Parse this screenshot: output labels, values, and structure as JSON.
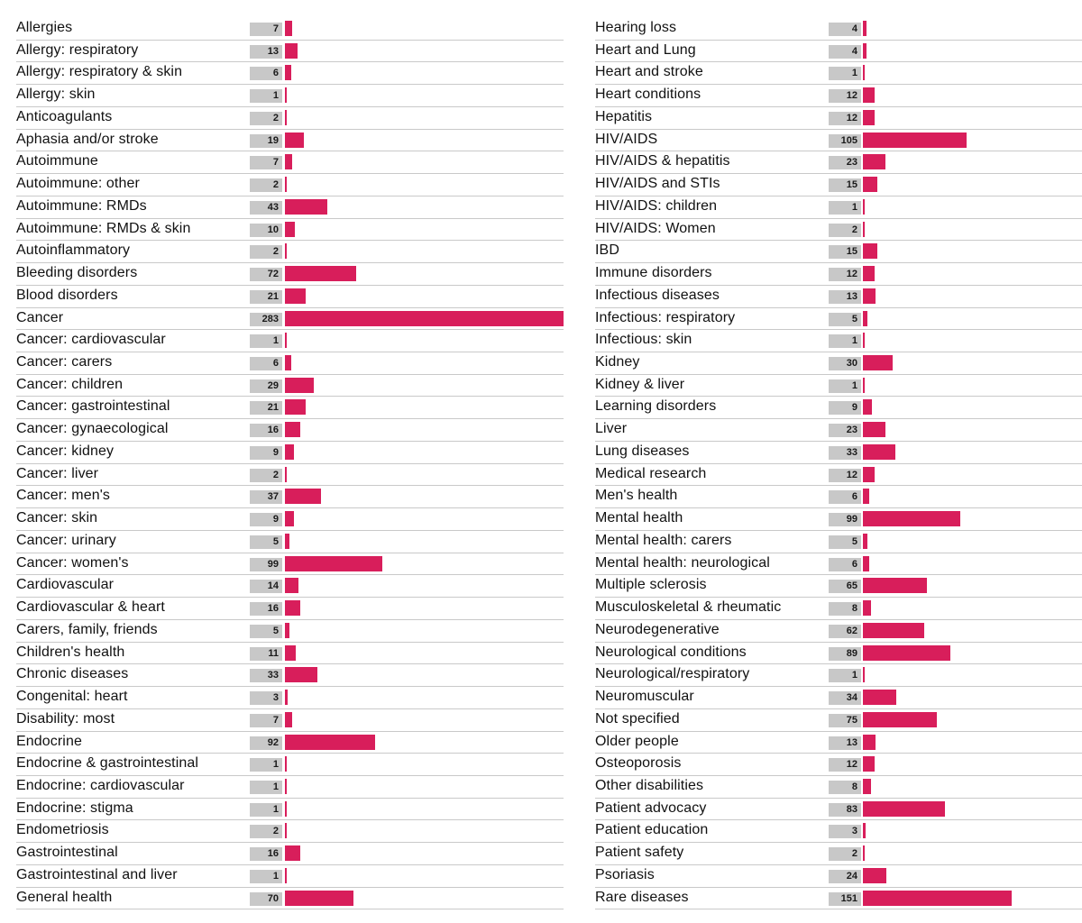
{
  "chart_data": [
    {
      "type": "bar",
      "orientation": "horizontal",
      "bar_color": "#d81e5b",
      "value_badge_color": "#c8c8c8",
      "categories": [
        "Allergies",
        "Allergy: respiratory",
        "Allergy: respiratory & skin",
        "Allergy: skin",
        "Anticoagulants",
        "Aphasia and/or stroke",
        "Autoimmune",
        "Autoimmune: other",
        "Autoimmune: RMDs",
        "Autoimmune: RMDs & skin",
        "Autoinflammatory",
        "Bleeding disorders",
        "Blood disorders",
        "Cancer",
        "Cancer: cardiovascular",
        "Cancer: carers",
        "Cancer: children",
        "Cancer: gastrointestinal",
        "Cancer: gynaecological",
        "Cancer: kidney",
        "Cancer: liver",
        "Cancer: men's",
        "Cancer: skin",
        "Cancer: urinary",
        "Cancer: women's",
        "Cardiovascular",
        "Cardiovascular & heart",
        "Carers, family, friends",
        "Children's health",
        "Chronic diseases",
        "Congenital: heart",
        "Disability: most",
        "Endocrine",
        "Endocrine & gastrointestinal",
        "Endocrine: cardiovascular",
        "Endocrine: stigma",
        "Endometriosis",
        "Gastrointestinal",
        "Gastrointestinal and liver",
        "General health"
      ],
      "values": [
        7,
        13,
        6,
        1,
        2,
        19,
        7,
        2,
        43,
        10,
        2,
        72,
        21,
        283,
        1,
        6,
        29,
        21,
        16,
        9,
        2,
        37,
        9,
        5,
        99,
        14,
        16,
        5,
        11,
        33,
        3,
        7,
        92,
        1,
        1,
        1,
        2,
        16,
        1,
        70
      ],
      "xlim": [
        0,
        283
      ]
    },
    {
      "type": "bar",
      "orientation": "horizontal",
      "bar_color": "#d81e5b",
      "value_badge_color": "#c8c8c8",
      "categories": [
        "Hearing loss",
        "Heart and Lung",
        "Heart and stroke",
        "Heart conditions",
        "Hepatitis",
        "HIV/AIDS",
        "HIV/AIDS & hepatitis",
        "HIV/AIDS and STIs",
        "HIV/AIDS: children",
        "HIV/AIDS: Women",
        "IBD",
        "Immune disorders",
        "Infectious diseases",
        "Infectious: respiratory",
        "Infectious: skin",
        "Kidney",
        "Kidney & liver",
        "Learning disorders",
        "Liver",
        "Lung diseases",
        "Medical research",
        "Men's health",
        "Mental health",
        "Mental health: carers",
        "Mental health: neurological",
        "Multiple sclerosis",
        "Musculoskeletal & rheumatic",
        "Neurodegenerative",
        "Neurological conditions",
        "Neurological/respiratory",
        "Neuromuscular",
        "Not specified",
        "Older people",
        "Osteoporosis",
        "Other disabilities",
        "Patient advocacy",
        "Patient education",
        "Patient safety",
        "Psoriasis",
        "Rare diseases"
      ],
      "values": [
        4,
        4,
        1,
        12,
        12,
        105,
        23,
        15,
        1,
        2,
        15,
        12,
        13,
        5,
        1,
        30,
        1,
        9,
        23,
        33,
        12,
        6,
        99,
        5,
        6,
        65,
        8,
        62,
        89,
        1,
        34,
        75,
        13,
        12,
        8,
        83,
        3,
        2,
        24,
        151
      ],
      "xlim": [
        0,
        283
      ]
    }
  ]
}
